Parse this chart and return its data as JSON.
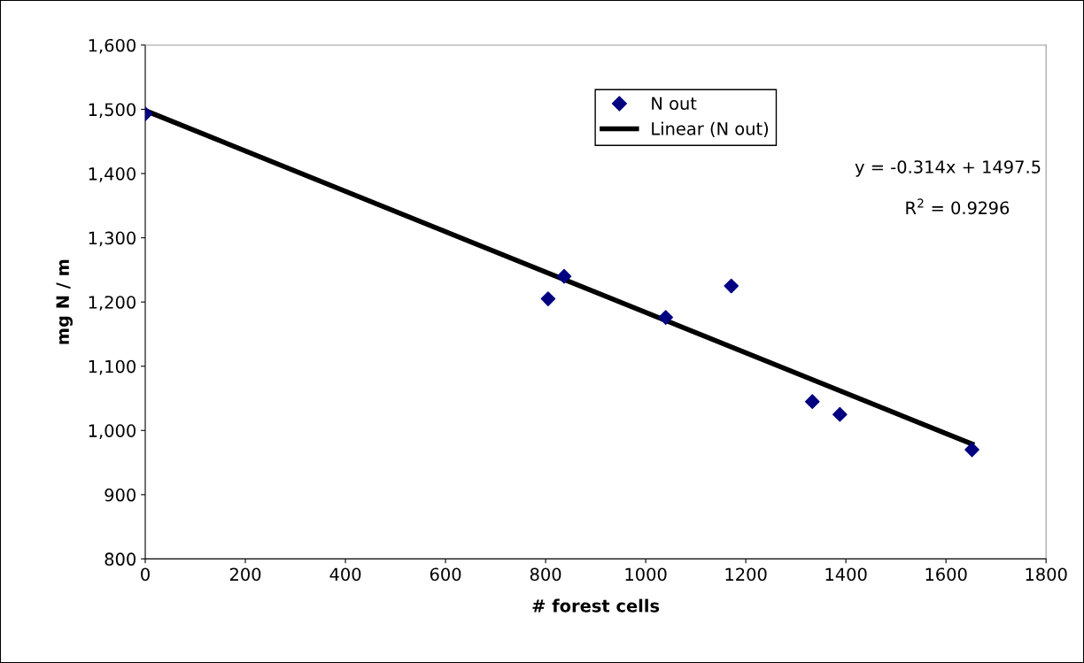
{
  "chart_data": {
    "type": "scatter",
    "xlabel": "# forest cells",
    "ylabel": "mg N / m",
    "xlim": [
      0,
      1800
    ],
    "xticks": [
      0,
      200,
      400,
      600,
      800,
      1000,
      1200,
      1400,
      1600,
      1800
    ],
    "ylim": [
      800,
      1600
    ],
    "yticks": [
      {
        "value": 800,
        "label": "800"
      },
      {
        "value": 900,
        "label": "900"
      },
      {
        "value": 1000,
        "label": "1,000"
      },
      {
        "value": 1100,
        "label": "1,100"
      },
      {
        "value": 1200,
        "label": "1,200"
      },
      {
        "value": 1300,
        "label": "1,300"
      },
      {
        "value": 1400,
        "label": "1,400"
      },
      {
        "value": 1500,
        "label": "1,500"
      },
      {
        "value": 1600,
        "label": "1,600"
      }
    ],
    "grid": false,
    "legend": "top",
    "marker": "diamond",
    "series": [
      {
        "name": "N out",
        "color": "#000080",
        "x": [
          0,
          805,
          837,
          1040,
          1171,
          1333,
          1388,
          1652
        ],
        "values": [
          1493,
          1205,
          1240,
          1176,
          1225,
          1045,
          1025,
          970
        ]
      },
      {
        "name": "Linear (N out)",
        "type": "line",
        "color": "#000000",
        "line_style": "solid",
        "marker": "none",
        "x": [
          0,
          1652
        ],
        "values": [
          1498,
          979
        ]
      }
    ],
    "annotations": [
      "y = -0.314x + 1497.5",
      "R$^{2}$ = 0.9296"
    ]
  }
}
